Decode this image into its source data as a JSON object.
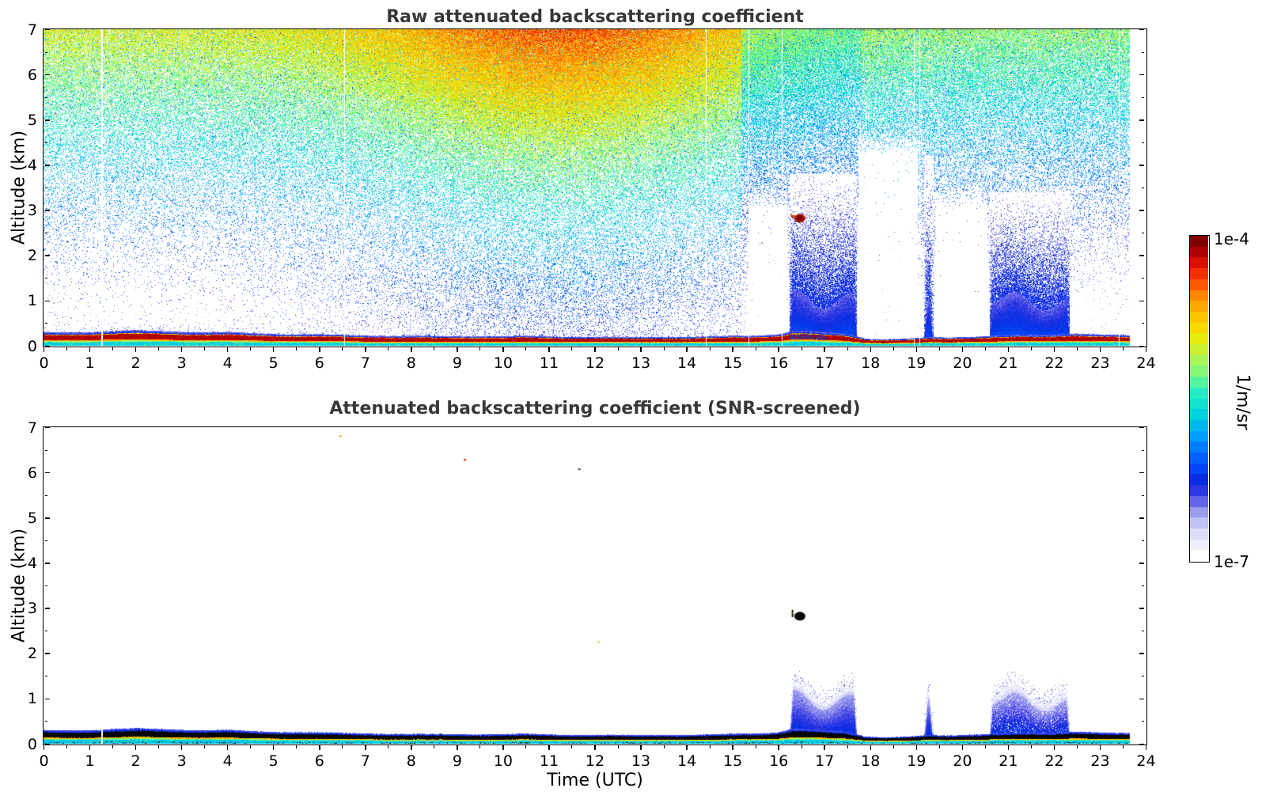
{
  "figure": {
    "background": "#ffffff"
  },
  "axes": {
    "x_label": "Time (UTC)",
    "y_label": "Altitude (km)",
    "x_range": [
      0,
      24
    ],
    "y_range": [
      0,
      7
    ],
    "x_ticks": [
      0,
      1,
      2,
      3,
      4,
      5,
      6,
      7,
      8,
      9,
      10,
      11,
      12,
      13,
      14,
      15,
      16,
      17,
      18,
      19,
      20,
      21,
      22,
      23,
      24
    ],
    "x_ticklabels": [
      "0",
      "1",
      "2",
      "3",
      "4",
      "5",
      "6",
      "7",
      "8",
      "9",
      "10",
      "11",
      "12",
      "13",
      "14",
      "15",
      "16",
      "17",
      "18",
      "19",
      "20",
      "21",
      "22",
      "23",
      "24"
    ],
    "y_ticks": [
      0,
      1,
      2,
      3,
      4,
      5,
      6,
      7
    ],
    "y_ticklabels": [
      "0",
      "1",
      "2",
      "3",
      "4",
      "5",
      "6",
      "7"
    ],
    "x_minor_step": 0.5,
    "y_minor_step": 0.5
  },
  "colorbar": {
    "unit_label": "1/m/sr",
    "max_label": "1e-4",
    "min_label": "1e-7",
    "vmin": 1e-07,
    "vmax": 0.0001,
    "scale": "log",
    "steps": 30,
    "stops": [
      [
        0.0,
        "#ffffff"
      ],
      [
        0.03,
        "#f2f2fd"
      ],
      [
        0.07,
        "#dedefa"
      ],
      [
        0.11,
        "#bcbcf2"
      ],
      [
        0.15,
        "#8c8cec"
      ],
      [
        0.19,
        "#4444e4"
      ],
      [
        0.23,
        "#0a28e0"
      ],
      [
        0.3,
        "#0055ff"
      ],
      [
        0.38,
        "#00a0ff"
      ],
      [
        0.45,
        "#00d4e0"
      ],
      [
        0.52,
        "#2aeec4"
      ],
      [
        0.58,
        "#7cf87c"
      ],
      [
        0.64,
        "#bcf446"
      ],
      [
        0.7,
        "#f0e800"
      ],
      [
        0.76,
        "#ffc400"
      ],
      [
        0.82,
        "#ff9000"
      ],
      [
        0.87,
        "#ff5000"
      ],
      [
        0.92,
        "#e81600"
      ],
      [
        0.96,
        "#b40000"
      ],
      [
        1.0,
        "#800000"
      ]
    ]
  },
  "chart_data": [
    {
      "type": "heatmap",
      "panel": "raw",
      "title": "Raw attenuated backscattering coefficient",
      "x_range": [
        0,
        24
      ],
      "y_range": [
        0,
        7
      ],
      "value_unit": "1/m/sr",
      "value_range_log": [
        1e-07,
        0.0001
      ],
      "data_end_time": 23.65,
      "solar_background": {
        "peak_time": 11.3,
        "sigma_hours": 4.2
      },
      "surface_layer": {
        "times": [
          0,
          0.5,
          1,
          1.5,
          2,
          2.5,
          3,
          3.5,
          4,
          4.5,
          5,
          5.5,
          6,
          6.5,
          7,
          7.5,
          8,
          9,
          10,
          10.5,
          11,
          12,
          13,
          13.5,
          14,
          14.5,
          15,
          15.5,
          16,
          16.3,
          16.6,
          17,
          17.4,
          17.7,
          17.9,
          18.3,
          18.7,
          19,
          19.3,
          19.6,
          20,
          20.4,
          20.8,
          21.2,
          21.6,
          22,
          22.4,
          22.8,
          23.2,
          23.65
        ],
        "top_km": [
          0.3,
          0.3,
          0.31,
          0.33,
          0.34,
          0.33,
          0.32,
          0.31,
          0.31,
          0.29,
          0.28,
          0.27,
          0.26,
          0.25,
          0.24,
          0.23,
          0.22,
          0.215,
          0.21,
          0.22,
          0.21,
          0.2,
          0.2,
          0.21,
          0.2,
          0.21,
          0.23,
          0.24,
          0.26,
          0.33,
          0.33,
          0.3,
          0.28,
          0.22,
          0.16,
          0.14,
          0.15,
          0.17,
          0.2,
          0.19,
          0.2,
          0.21,
          0.23,
          0.25,
          0.26,
          0.26,
          0.28,
          0.26,
          0.25,
          0.25
        ]
      },
      "rain_events": [
        {
          "start": 16.25,
          "end": 17.72,
          "top_km": 1.1,
          "halo_top_km": 3.8
        },
        {
          "start": 19.17,
          "end": 19.38,
          "top_km": 1.05,
          "halo_top_km": 4.2,
          "shape": "spike"
        },
        {
          "start": 20.6,
          "end": 22.35,
          "top_km": 1.0,
          "halo_top_km": 3.4
        }
      ],
      "cloud": {
        "time": 16.47,
        "alt_km": 2.82,
        "appearance": "dark-red"
      },
      "signal_gaps": [
        {
          "start": 15.35,
          "end": 16.2,
          "below_km": 3.0
        },
        {
          "start": 17.75,
          "end": 19.03,
          "below_km": 4.2
        },
        {
          "start": 19.42,
          "end": 20.55,
          "below_km": 3.0
        }
      ],
      "dropout_times": [
        1.26,
        6.55,
        14.42,
        15.35,
        16.08,
        18.95,
        19.07,
        23.42
      ]
    },
    {
      "type": "heatmap",
      "panel": "snr-screened",
      "title": "Attenuated backscattering coefficient (SNR-screened)",
      "x_range": [
        0,
        24
      ],
      "y_range": [
        0,
        7
      ],
      "value_unit": "1/m/sr",
      "value_range_log": [
        1e-07,
        0.0001
      ],
      "data_end_time": 23.65,
      "surface_overlay": "black-band",
      "surface_layer": {
        "times": [
          0,
          0.5,
          1,
          1.5,
          2,
          2.5,
          3,
          3.5,
          4,
          4.5,
          5,
          5.5,
          6,
          6.5,
          7,
          7.5,
          8,
          9,
          10,
          10.5,
          11,
          12,
          13,
          13.5,
          14,
          14.5,
          15,
          15.5,
          16,
          16.3,
          16.6,
          17,
          17.4,
          17.7,
          17.9,
          18.3,
          18.7,
          19,
          19.3,
          19.6,
          20,
          20.4,
          20.8,
          21.2,
          21.6,
          22,
          22.4,
          22.8,
          23.2,
          23.65
        ],
        "top_km": [
          0.3,
          0.3,
          0.31,
          0.33,
          0.34,
          0.33,
          0.32,
          0.31,
          0.31,
          0.29,
          0.28,
          0.27,
          0.26,
          0.25,
          0.24,
          0.23,
          0.22,
          0.215,
          0.21,
          0.22,
          0.21,
          0.2,
          0.2,
          0.21,
          0.2,
          0.21,
          0.23,
          0.24,
          0.26,
          0.33,
          0.33,
          0.3,
          0.28,
          0.22,
          0.16,
          0.14,
          0.15,
          0.17,
          0.2,
          0.19,
          0.2,
          0.21,
          0.23,
          0.25,
          0.26,
          0.26,
          0.28,
          0.26,
          0.25,
          0.25
        ]
      },
      "rain_events": [
        {
          "start": 16.25,
          "end": 17.72,
          "top_km": 1.1
        },
        {
          "start": 19.17,
          "end": 19.38,
          "top_km": 1.05,
          "shape": "spike"
        },
        {
          "start": 20.6,
          "end": 22.35,
          "top_km": 1.0
        }
      ],
      "cloud": {
        "time": 16.47,
        "alt_km": 2.82,
        "appearance": "black"
      },
      "specks": [
        {
          "time": 6.46,
          "alt_km": 6.8,
          "color": "#e8a400"
        },
        {
          "time": 9.17,
          "alt_km": 6.28,
          "color": "#cc2200"
        },
        {
          "time": 11.66,
          "alt_km": 6.07,
          "color": "#444444"
        },
        {
          "time": 12.08,
          "alt_km": 2.25,
          "color": "#f0c000"
        }
      ],
      "dropout_times": [
        1.26
      ]
    }
  ]
}
